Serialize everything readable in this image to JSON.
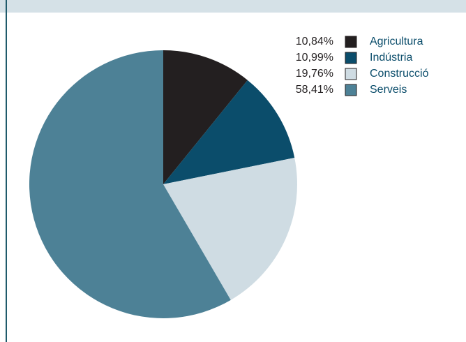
{
  "chart_data": {
    "type": "pie",
    "categories": [
      "Agricultura",
      "Indústria",
      "Construcció",
      "Serveis"
    ],
    "values": [
      10.84,
      10.99,
      19.76,
      58.41
    ],
    "value_labels": [
      "10,84%",
      "10,99%",
      "19,76%",
      "58,41%"
    ],
    "colors": [
      "#231f20",
      "#0b4d6b",
      "#cfdce3",
      "#4d8196"
    ]
  }
}
